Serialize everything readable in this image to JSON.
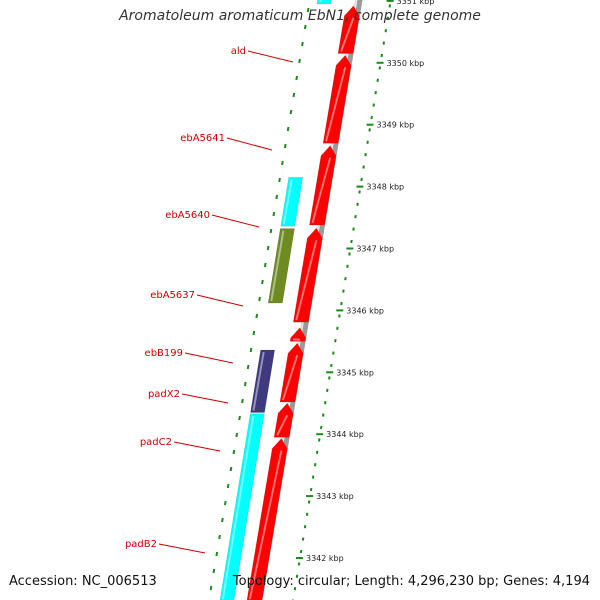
{
  "title": "Aromatoleum aromaticum EbN1, complete genome",
  "footer": {
    "accession": "Accession: NC_006513",
    "summary": "Topology: circular; Length: 4,296,230 bp; Genes: 4,194"
  },
  "colors": {
    "gene_label": "#cc0000",
    "forward_cds": "#ff0000",
    "reverse_cyan": "#00ffff",
    "reverse_navy": "#3f3a80",
    "reverse_olive": "#6e8b22",
    "reverse_gray": "#b8b8b8",
    "backbone": "#9a9a9a",
    "ruler_dots": "#1a8a1a"
  },
  "gene_labels": [
    {
      "id": "ald",
      "text": "ald"
    },
    {
      "id": "ebA5641",
      "text": "ebA5641"
    },
    {
      "id": "ebA5640",
      "text": "ebA5640"
    },
    {
      "id": "ebA5637",
      "text": "ebA5637"
    },
    {
      "id": "ebB199",
      "text": "ebB199"
    },
    {
      "id": "padX2",
      "text": "padX2"
    },
    {
      "id": "padC2",
      "text": "padC2"
    },
    {
      "id": "padB2",
      "text": "padB2"
    }
  ],
  "ruler_ticks": [
    "3351 kbp",
    "3350 kbp",
    "3349 kbp",
    "3348 kbp",
    "3347 kbp",
    "3346 kbp",
    "3345 kbp",
    "3344 kbp",
    "3343 kbp",
    "3342 kbp"
  ],
  "features": [
    {
      "track": "forward",
      "color": "forward_cds",
      "start": 3350.92,
      "end": 3350.15,
      "arrow": true
    },
    {
      "track": "forward",
      "color": "forward_cds",
      "start": 3350.12,
      "end": 3348.7,
      "arrow": true
    },
    {
      "track": "forward",
      "color": "forward_cds",
      "start": 3348.66,
      "end": 3347.38,
      "arrow": true
    },
    {
      "track": "forward",
      "color": "forward_cds",
      "start": 3347.33,
      "end": 3345.81,
      "arrow": true
    },
    {
      "track": "forward",
      "color": "forward_cds",
      "start": 3345.72,
      "end": 3345.5,
      "arrow": true
    },
    {
      "track": "forward",
      "color": "forward_cds",
      "start": 3345.47,
      "end": 3344.52,
      "arrow": true
    },
    {
      "track": "forward",
      "color": "forward_cds",
      "start": 3344.5,
      "end": 3343.95,
      "arrow": true
    },
    {
      "track": "forward",
      "color": "forward_cds",
      "start": 3343.93,
      "end": 3341.3,
      "arrow": true
    },
    {
      "track": "reverse",
      "color": "reverse_cyan",
      "start": 3351.05,
      "end": 3350.95,
      "arrow": false
    },
    {
      "track": "reverse",
      "color": "reverse_cyan",
      "start": 3348.15,
      "end": 3347.36,
      "arrow": false
    },
    {
      "track": "reverse",
      "color": "reverse_gray",
      "start": 3347.32,
      "end": 3346.12,
      "arrow": false
    },
    {
      "track": "reverse",
      "color": "reverse_olive",
      "start": 3347.32,
      "end": 3346.12,
      "arrow": false
    },
    {
      "track": "reverse",
      "color": "reverse_navy",
      "start": 3345.36,
      "end": 3344.35,
      "arrow": false
    },
    {
      "track": "reverse",
      "color": "reverse_cyan",
      "start": 3344.33,
      "end": 3341.3,
      "arrow": false
    }
  ]
}
